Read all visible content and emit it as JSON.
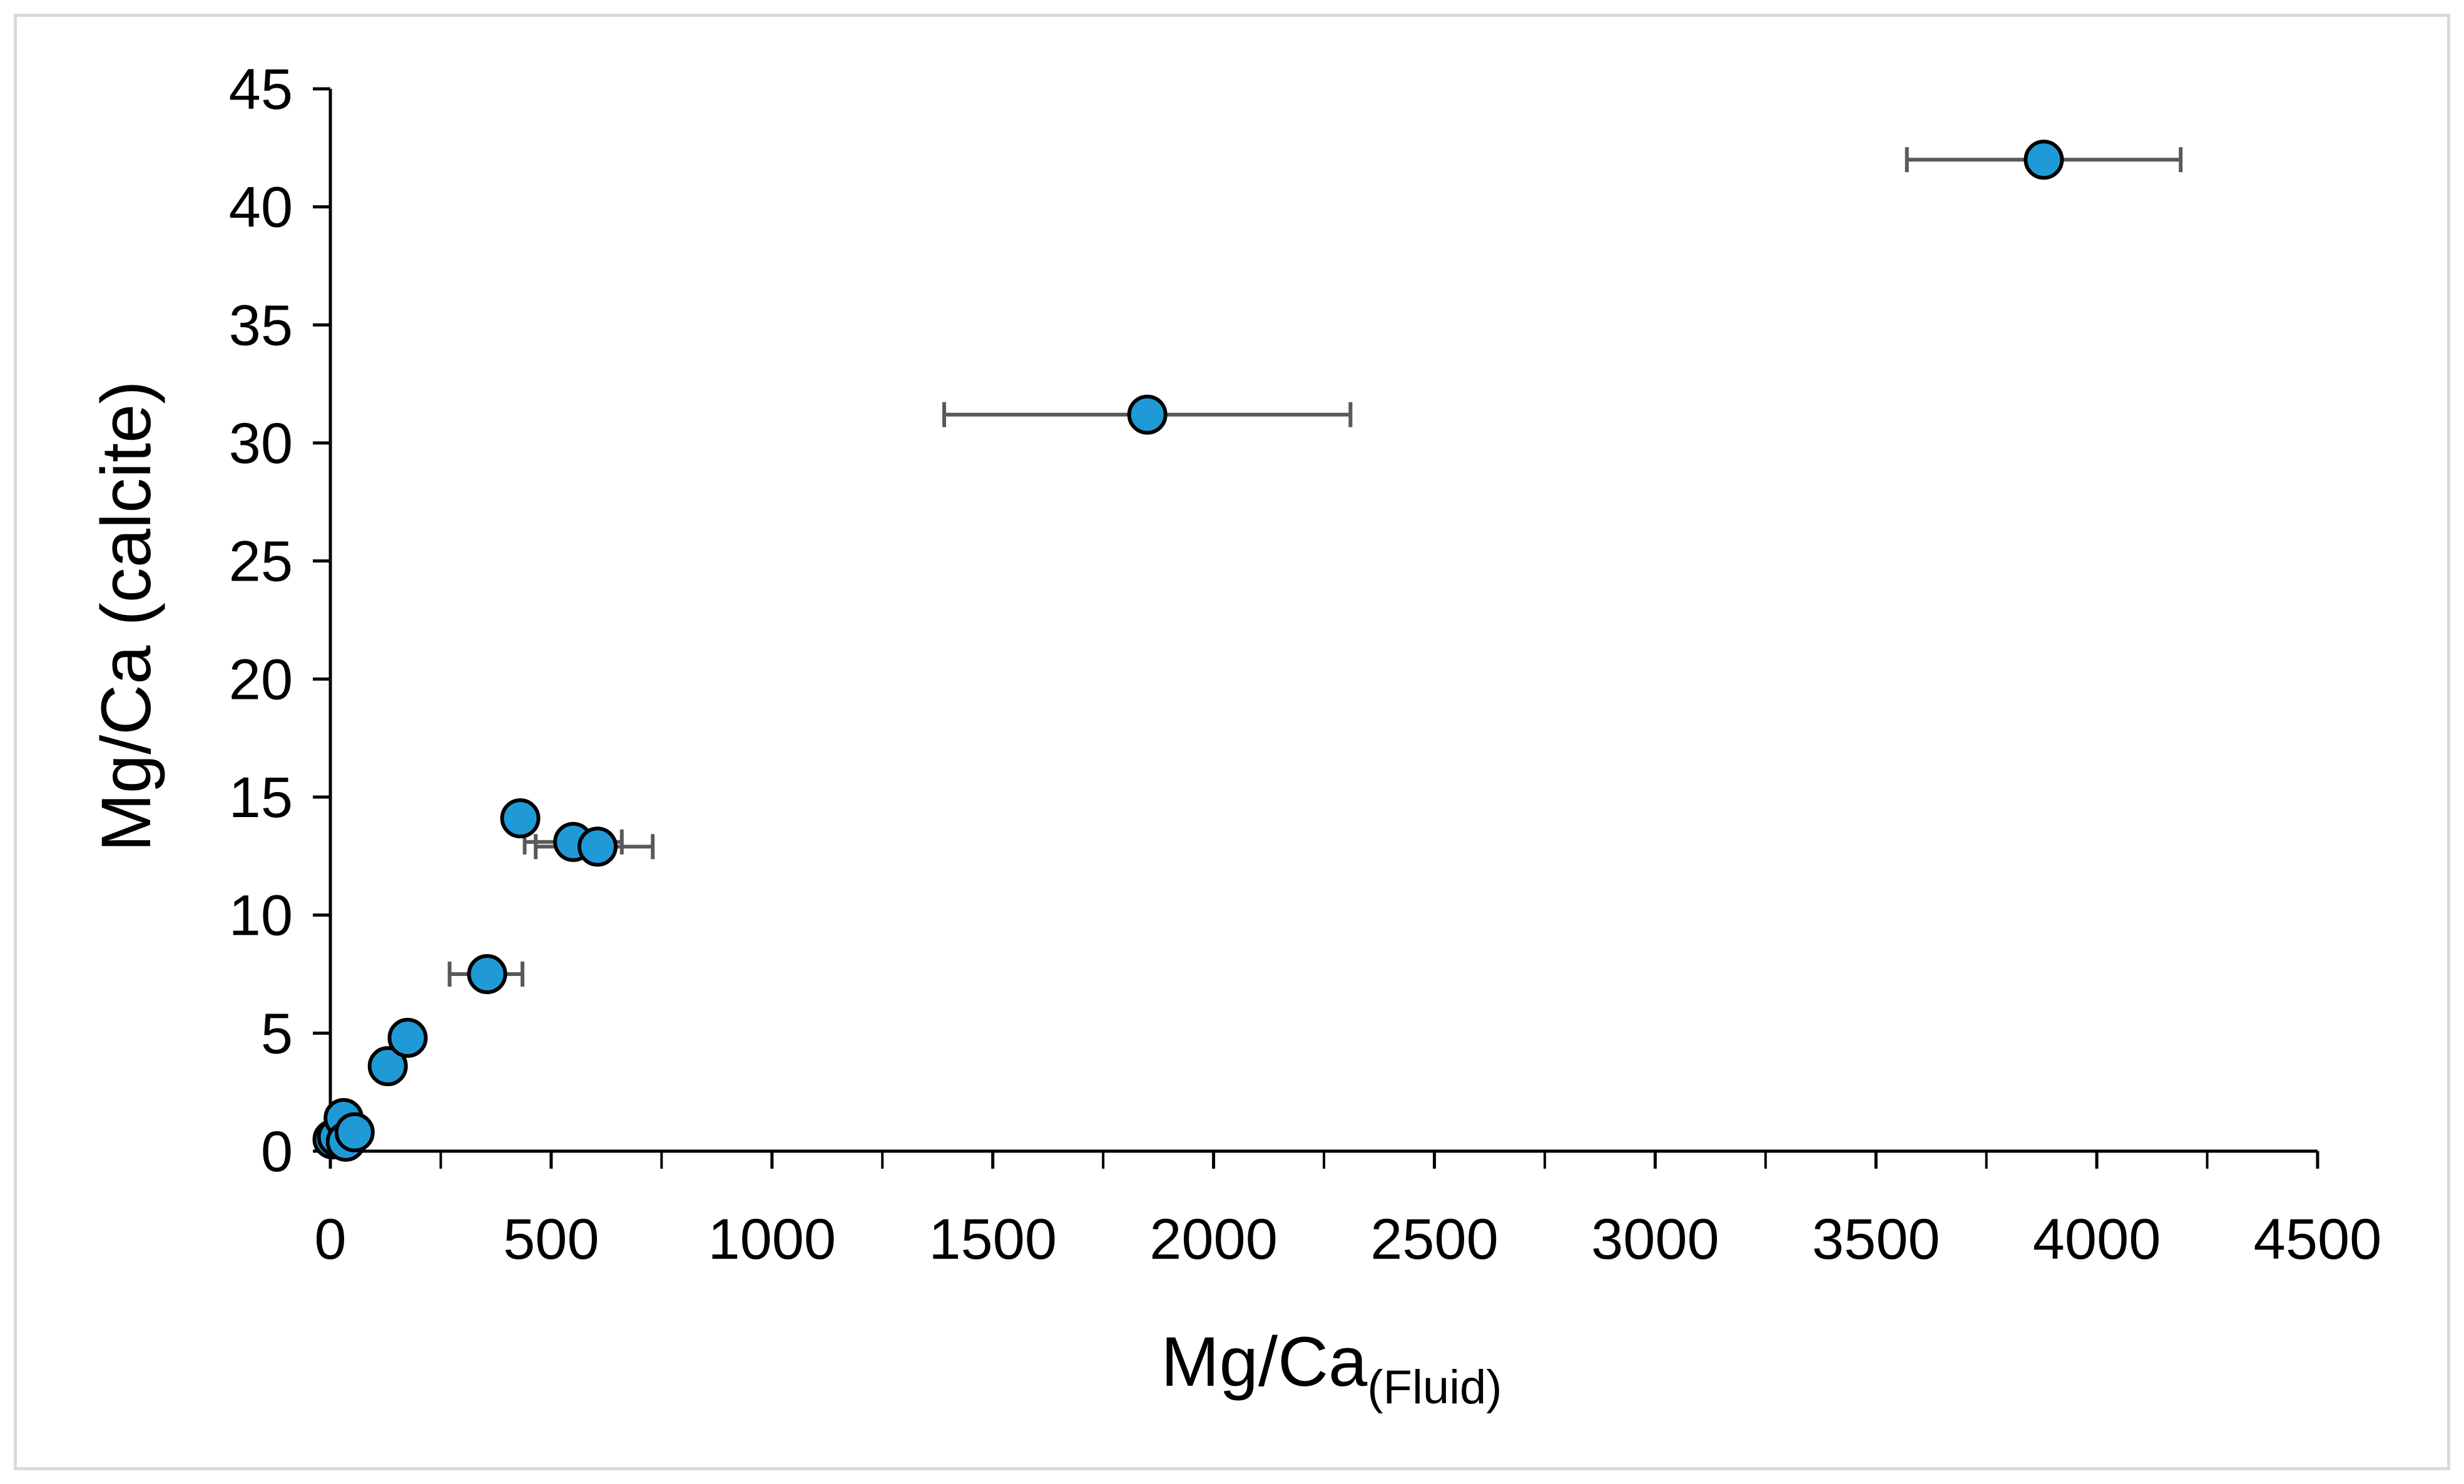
{
  "chart_data": {
    "type": "scatter",
    "title": "",
    "xlabel": "Mg/Ca",
    "xlabel_subscript": "(Fluid)",
    "ylabel": "Mg/Ca (calcite)",
    "xlim": [
      0,
      4500
    ],
    "ylim": [
      0,
      45
    ],
    "xticks": [
      0,
      500,
      1000,
      1500,
      2000,
      2500,
      3000,
      3500,
      4000,
      4500
    ],
    "yticks": [
      0,
      5,
      10,
      15,
      20,
      25,
      30,
      35,
      40,
      45
    ],
    "grid": false,
    "legend": "none",
    "marker_color": "#1f9ad6",
    "marker_edge_color": "#000000",
    "errorbar_color": "#595959",
    "points": [
      {
        "x": 5,
        "y": 0.5
      },
      {
        "x": 15,
        "y": 0.6
      },
      {
        "x": 30,
        "y": 1.4
      },
      {
        "x": 35,
        "y": 0.4
      },
      {
        "x": 55,
        "y": 0.8
      },
      {
        "x": 130,
        "y": 3.6
      },
      {
        "x": 175,
        "y": 4.8
      },
      {
        "x": 355,
        "y": 7.5,
        "xerr": [
          270,
          435
        ]
      },
      {
        "x": 430,
        "y": 14.1
      },
      {
        "x": 550,
        "y": 13.1,
        "xerr": [
          440,
          660
        ]
      },
      {
        "x": 605,
        "y": 12.9,
        "xerr": [
          465,
          730
        ]
      },
      {
        "x": 1850,
        "y": 31.2,
        "xerr": [
          1390,
          2310
        ]
      },
      {
        "x": 3880,
        "y": 42.0,
        "xerr": [
          3570,
          4190
        ]
      }
    ]
  }
}
